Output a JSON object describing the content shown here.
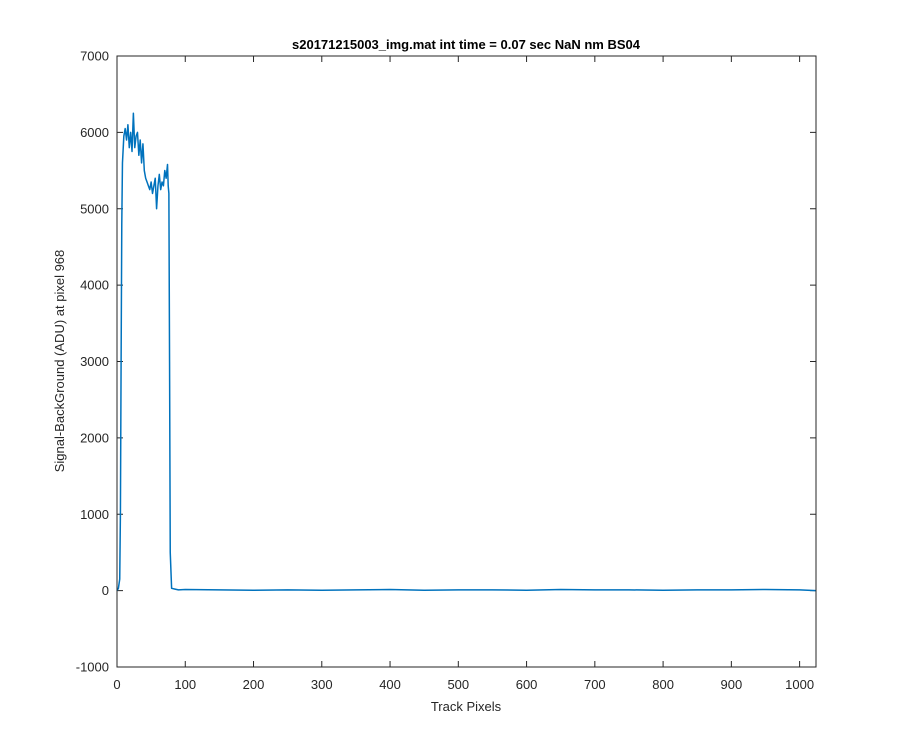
{
  "chart_data": {
    "type": "line",
    "title": "s20171215003_img.mat int time = 0.07 sec  NaN nm BS04",
    "xlabel": "Track Pixels",
    "ylabel": "Signal-BackGround (ADU) at pixel 968",
    "xlim": [
      0,
      1024
    ],
    "ylim": [
      -1000,
      7000
    ],
    "xticks": [
      0,
      100,
      200,
      300,
      400,
      500,
      600,
      700,
      800,
      900,
      1000
    ],
    "yticks": [
      -1000,
      0,
      1000,
      2000,
      3000,
      4000,
      5000,
      6000,
      7000
    ],
    "grid": false,
    "legend": false,
    "series": [
      {
        "color": "#0072BD",
        "x": [
          0,
          2,
          4,
          5,
          6,
          7,
          8,
          10,
          12,
          14,
          16,
          18,
          20,
          22,
          24,
          26,
          28,
          30,
          32,
          34,
          36,
          38,
          40,
          42,
          44,
          46,
          48,
          50,
          52,
          54,
          56,
          58,
          60,
          62,
          64,
          66,
          68,
          70,
          72,
          74,
          75,
          76,
          77,
          78,
          80,
          85,
          90,
          100,
          150,
          200,
          250,
          300,
          350,
          400,
          450,
          500,
          550,
          600,
          650,
          700,
          750,
          800,
          850,
          900,
          950,
          1000,
          1024
        ],
        "y": [
          0,
          30,
          150,
          1000,
          3000,
          4800,
          5600,
          5950,
          6050,
          5900,
          6100,
          5800,
          6000,
          5750,
          6250,
          5800,
          5950,
          6000,
          5700,
          5900,
          5600,
          5850,
          5500,
          5400,
          5350,
          5300,
          5250,
          5350,
          5200,
          5300,
          5400,
          5000,
          5300,
          5450,
          5250,
          5350,
          5300,
          5500,
          5400,
          5580,
          5300,
          5200,
          3000,
          500,
          30,
          20,
          10,
          15,
          10,
          5,
          10,
          5,
          10,
          15,
          5,
          10,
          10,
          5,
          15,
          10,
          10,
          5,
          10,
          10,
          15,
          10,
          0
        ]
      }
    ]
  }
}
